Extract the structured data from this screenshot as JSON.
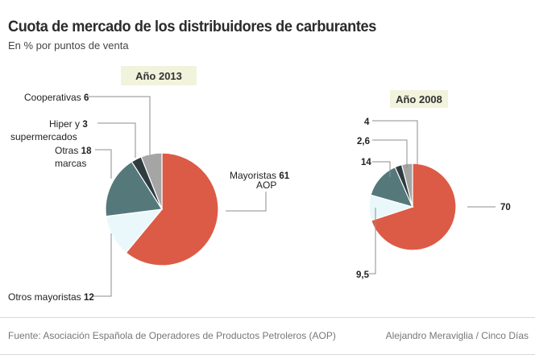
{
  "title": "Cuota de mercado de los distribuidores de carburantes",
  "subtitle": "En % por puntos de venta",
  "source": "Fuente: Asociación Española de Operadores de Productos Petroleros (AOP)",
  "credit": "Alejandro Meraviglia / Cinco Días",
  "colors": {
    "mayoristas": "#dc5b46",
    "otros_mayoristas": "#eaf8fb",
    "otras_marcas": "#55797a",
    "hiper": "#2f3b3f",
    "cooperativas": "#a5a5a5",
    "year_badge": "#f1f3dc",
    "leader": "#8e8e8e"
  },
  "chart_data": [
    {
      "type": "pie",
      "title": "Año 2013",
      "slices": [
        {
          "key": "mayoristas",
          "label": "Mayoristas",
          "label2": "AOP",
          "value": 61,
          "display": "61"
        },
        {
          "key": "otros_mayoristas",
          "label": "Otros mayoristas",
          "value": 12,
          "display": "12"
        },
        {
          "key": "otras_marcas",
          "label": "Otras",
          "label2": "marcas",
          "value": 18,
          "display": "18"
        },
        {
          "key": "hiper",
          "label": "Hiper y",
          "label2": "supermercados",
          "value": 3,
          "display": "3"
        },
        {
          "key": "cooperativas",
          "label": "Cooperativas",
          "value": 6,
          "display": "6"
        }
      ]
    },
    {
      "type": "pie",
      "title": "Año 2008",
      "slices": [
        {
          "key": "mayoristas",
          "value": 70,
          "display": "70"
        },
        {
          "key": "otros_mayoristas",
          "value": 9.5,
          "display": "9,5"
        },
        {
          "key": "otras_marcas",
          "value": 14,
          "display": "14"
        },
        {
          "key": "hiper",
          "value": 2.6,
          "display": "2,6"
        },
        {
          "key": "cooperativas",
          "value": 4,
          "display": "4"
        }
      ]
    }
  ]
}
